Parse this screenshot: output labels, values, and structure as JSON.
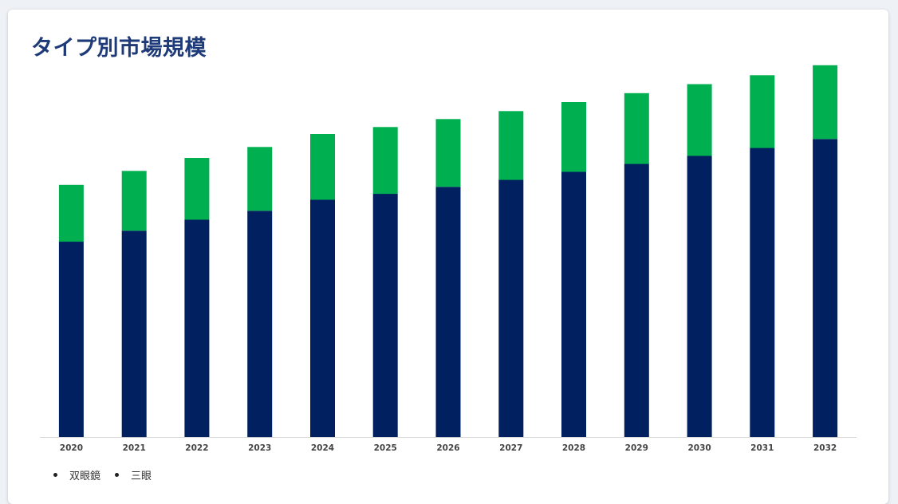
{
  "title": "タイプ別市場規模",
  "colors": {
    "title": "#1e3a78",
    "series_0": "#00205f",
    "series_1": "#00b050",
    "axis": "#d9d9d9"
  },
  "legend": {
    "items": [
      "双眼鏡",
      "三眼"
    ]
  },
  "chart_data": {
    "type": "bar",
    "stacked": true,
    "categories": [
      "2020",
      "2021",
      "2022",
      "2023",
      "2024",
      "2025",
      "2026",
      "2027",
      "2028",
      "2029",
      "2030",
      "2031",
      "2032"
    ],
    "series": [
      {
        "name": "双眼鏡",
        "values": [
          196,
          207,
          218,
          227,
          238,
          244,
          251,
          258,
          266,
          274,
          282,
          290,
          299
        ]
      },
      {
        "name": "三眼",
        "values": [
          57,
          60,
          62,
          64,
          66,
          67,
          68,
          69,
          70,
          71,
          72,
          73,
          74
        ]
      }
    ],
    "ylim": [
      0,
      400
    ],
    "grid": false,
    "y_axis_visible": false,
    "legend_position": "bottom-left"
  }
}
